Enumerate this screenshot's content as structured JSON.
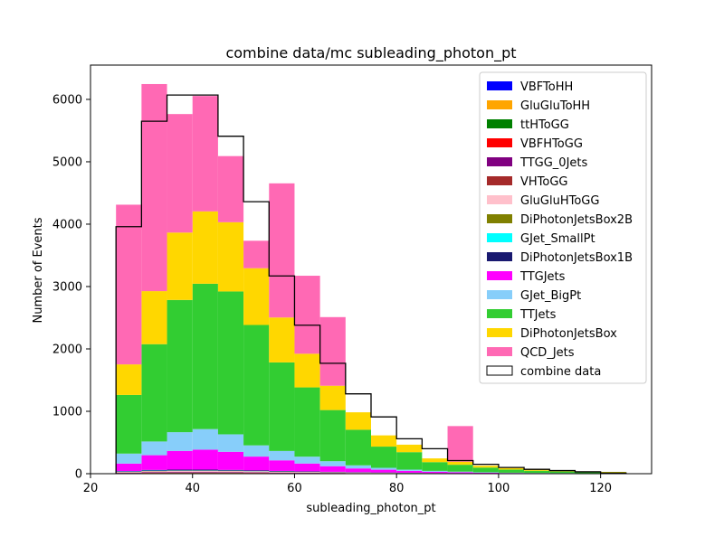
{
  "chart_data": {
    "type": "bar",
    "title": "combine data/mc subleading_photon_pt",
    "xlabel": "subleading_photon_pt",
    "ylabel": "Number of Events",
    "xlim": [
      20,
      130
    ],
    "ylim": [
      0,
      6550
    ],
    "xticks": [
      20,
      40,
      60,
      80,
      100,
      120
    ],
    "yticks": [
      0,
      1000,
      2000,
      3000,
      4000,
      5000,
      6000
    ],
    "grid": false,
    "legend_position": "top-right",
    "bin_edges": [
      25,
      30,
      35,
      40,
      45,
      50,
      55,
      60,
      65,
      70,
      75,
      80,
      85,
      90,
      95,
      100,
      105,
      110,
      115,
      120,
      125
    ],
    "stacked": true,
    "series": [
      {
        "name": "VBFToHH",
        "color": "#0000ff",
        "values": [
          1,
          2,
          2,
          2,
          2,
          2,
          1,
          1,
          1,
          1,
          1,
          0,
          0,
          0,
          0,
          0,
          0,
          0,
          0,
          0
        ]
      },
      {
        "name": "GluGluToHH",
        "color": "#ffa500",
        "values": [
          2,
          3,
          3,
          3,
          3,
          2,
          2,
          2,
          1,
          1,
          1,
          1,
          0,
          0,
          0,
          0,
          0,
          0,
          0,
          0
        ]
      },
      {
        "name": "ttHToGG",
        "color": "#008000",
        "values": [
          3,
          5,
          6,
          6,
          6,
          5,
          4,
          3,
          3,
          2,
          2,
          1,
          1,
          1,
          1,
          0,
          0,
          0,
          0,
          0
        ]
      },
      {
        "name": "VBFHToGG",
        "color": "#ff0000",
        "values": [
          3,
          4,
          4,
          4,
          4,
          4,
          3,
          3,
          2,
          2,
          1,
          1,
          1,
          1,
          0,
          0,
          0,
          0,
          0,
          0
        ]
      },
      {
        "name": "TTGG_0Jets",
        "color": "#800080",
        "values": [
          5,
          8,
          9,
          9,
          8,
          7,
          6,
          5,
          4,
          3,
          2,
          2,
          1,
          1,
          1,
          1,
          0,
          0,
          0,
          0
        ]
      },
      {
        "name": "VHToGG",
        "color": "#a52a2a",
        "values": [
          2,
          3,
          3,
          3,
          3,
          3,
          2,
          2,
          2,
          1,
          1,
          1,
          1,
          0,
          0,
          0,
          0,
          0,
          0,
          0
        ]
      },
      {
        "name": "GluGluHToGG",
        "color": "#ffc0cb",
        "values": [
          10,
          15,
          17,
          17,
          16,
          14,
          12,
          10,
          8,
          6,
          5,
          4,
          3,
          2,
          2,
          1,
          1,
          1,
          1,
          1
        ]
      },
      {
        "name": "DiPhotonJetsBox2B",
        "color": "#808000",
        "values": [
          3,
          4,
          4,
          4,
          4,
          3,
          3,
          2,
          2,
          2,
          1,
          1,
          1,
          1,
          0,
          0,
          0,
          0,
          0,
          0
        ]
      },
      {
        "name": "GJet_SmallPt",
        "color": "#00ffff",
        "values": [
          5,
          5,
          4,
          4,
          3,
          3,
          2,
          2,
          1,
          1,
          1,
          1,
          0,
          0,
          0,
          0,
          0,
          0,
          0,
          0
        ]
      },
      {
        "name": "DiPhotonJetsBox1B",
        "color": "#191970",
        "values": [
          8,
          12,
          13,
          13,
          12,
          11,
          9,
          8,
          6,
          5,
          4,
          3,
          2,
          2,
          1,
          1,
          1,
          1,
          0,
          0
        ]
      },
      {
        "name": "TTGJets",
        "color": "#ff00ff",
        "values": [
          120,
          235,
          300,
          320,
          290,
          220,
          170,
          125,
          90,
          60,
          45,
          30,
          20,
          15,
          10,
          8,
          6,
          5,
          4,
          3
        ]
      },
      {
        "name": "GJet_BigPt",
        "color": "#87cefa",
        "values": [
          160,
          220,
          300,
          330,
          280,
          180,
          150,
          110,
          80,
          50,
          30,
          20,
          15,
          10,
          8,
          5,
          4,
          3,
          2,
          2
        ]
      },
      {
        "name": "TTJets",
        "color": "#32cd32",
        "values": [
          940,
          1560,
          2120,
          2330,
          2290,
          1930,
          1420,
          1110,
          820,
          570,
          340,
          280,
          140,
          110,
          75,
          50,
          35,
          25,
          20,
          15
        ]
      },
      {
        "name": "DiPhotonJetsBox",
        "color": "#ffd700",
        "values": [
          490,
          850,
          1080,
          1160,
          1110,
          910,
          720,
          540,
          390,
          280,
          180,
          120,
          60,
          50,
          30,
          25,
          20,
          15,
          10,
          8
        ]
      },
      {
        "name": "QCD_Jets",
        "color": "#ff69b4",
        "values": [
          2560,
          3320,
          1900,
          1850,
          1060,
          440,
          2150,
          1250,
          1100,
          0,
          0,
          0,
          0,
          570,
          0,
          0,
          0,
          0,
          0,
          0
        ]
      }
    ],
    "data": {
      "name": "combine data",
      "values": [
        3960,
        5650,
        6070,
        6070,
        5410,
        4360,
        3170,
        2380,
        1770,
        1280,
        910,
        560,
        400,
        210,
        150,
        100,
        70,
        50,
        30,
        10
      ]
    }
  }
}
